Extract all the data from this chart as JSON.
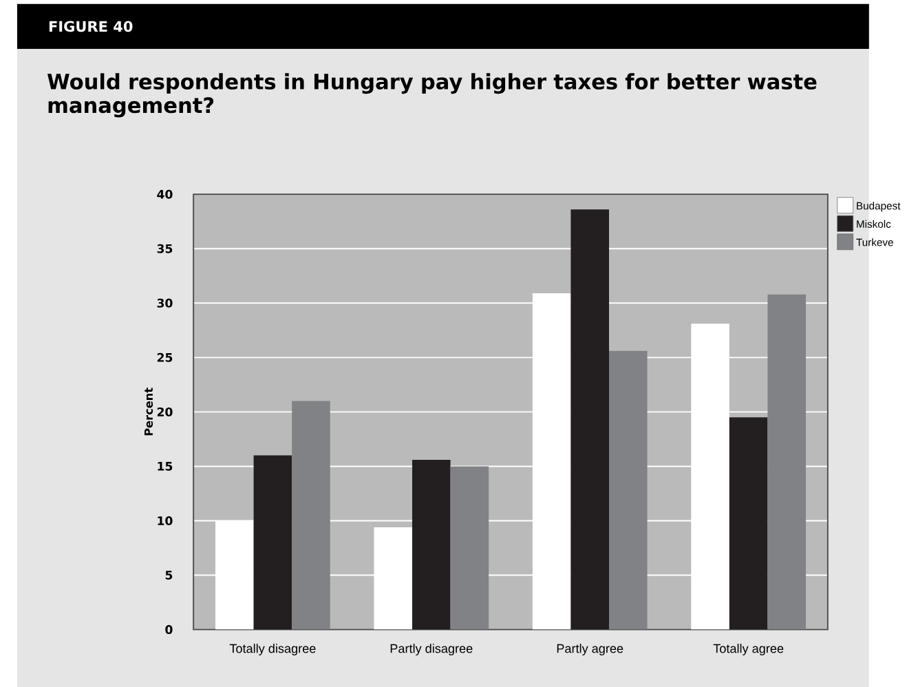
{
  "chart_data": {
    "type": "bar",
    "title": "Would respondents in Hungary pay higher taxes for better waste management?",
    "annotations": [
      "FIGURE 40"
    ],
    "ylabel": "Percent",
    "categories": [
      "Totally disagree",
      "Partly disagree",
      "Partly agree",
      "Totally agree"
    ],
    "series": [
      {
        "name": "Budapest",
        "color": "#ffffff",
        "values": [
          10,
          9.4,
          30.9,
          28.1
        ]
      },
      {
        "name": "Miskolc",
        "color": "#231f20",
        "values": [
          16,
          15.6,
          38.6,
          19.5
        ]
      },
      {
        "name": "Turkeve",
        "color": "#808285",
        "values": [
          21,
          15,
          25.6,
          30.8
        ]
      }
    ],
    "ylim": [
      0,
      40
    ],
    "yticks": [
      0,
      5,
      10,
      15,
      20,
      25,
      30,
      35,
      40
    ],
    "grid": "y",
    "legend": "top right"
  }
}
